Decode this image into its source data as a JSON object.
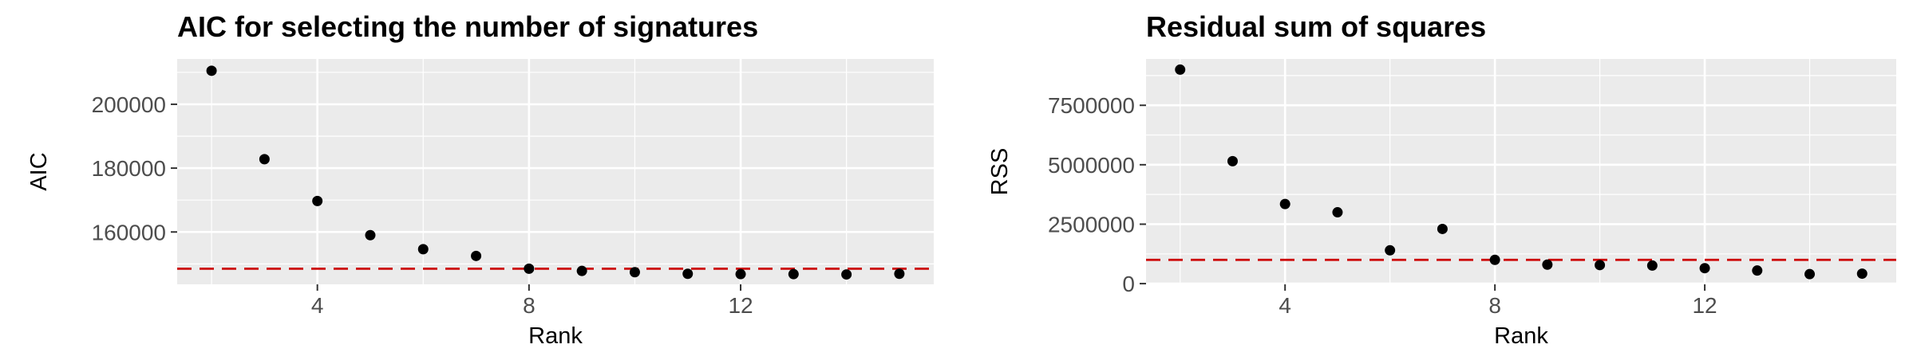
{
  "chart_data": [
    {
      "type": "scatter",
      "title": "AIC for selecting the number of signatures",
      "xlabel": "Rank",
      "ylabel": "AIC",
      "x": [
        2,
        3,
        4,
        5,
        6,
        7,
        8,
        9,
        10,
        11,
        12,
        13,
        14,
        15
      ],
      "y": [
        210500,
        182800,
        169700,
        159000,
        154600,
        152500,
        148500,
        147800,
        147400,
        146900,
        146800,
        146800,
        146700,
        146900
      ],
      "xlim": [
        1.35,
        15.65
      ],
      "ylim": [
        143600,
        214200
      ],
      "xticks": [
        4,
        8,
        12
      ],
      "xtick_labels": [
        "4",
        "8",
        "12"
      ],
      "yticks": [
        160000,
        180000,
        200000
      ],
      "ytick_labels": [
        "160000",
        "180000",
        "200000"
      ],
      "hline": 148500,
      "hline_style": "dashed",
      "grid": true,
      "colors": {
        "points": "#000000",
        "hline": "#cc0000",
        "panel": "#ebebeb",
        "grid": "#ffffff"
      }
    },
    {
      "type": "scatter",
      "title": "Residual sum of squares",
      "xlabel": "Rank",
      "ylabel": "RSS",
      "x": [
        2,
        3,
        4,
        5,
        6,
        7,
        8,
        9,
        10,
        11,
        12,
        13,
        14,
        15
      ],
      "y": [
        9000000,
        5150000,
        3350000,
        3000000,
        1400000,
        2300000,
        1000000,
        800000,
        780000,
        760000,
        650000,
        550000,
        400000,
        420000
      ],
      "xlim": [
        1.35,
        15.65
      ],
      "ylim": [
        -30000,
        9450000
      ],
      "xticks": [
        4,
        8,
        12
      ],
      "xtick_labels": [
        "4",
        "8",
        "12"
      ],
      "yticks": [
        0,
        2500000,
        5000000,
        7500000
      ],
      "ytick_labels": [
        "0",
        "2500000",
        "5000000",
        "7500000"
      ],
      "hline": 1000000,
      "hline_style": "dashed",
      "grid": true,
      "colors": {
        "points": "#000000",
        "hline": "#cc0000",
        "panel": "#ebebeb",
        "grid": "#ffffff"
      }
    }
  ]
}
